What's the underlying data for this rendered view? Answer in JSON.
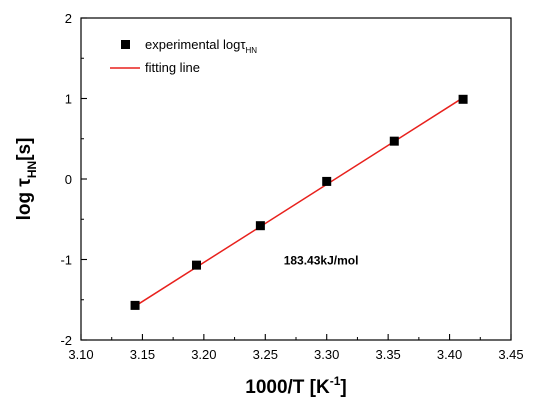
{
  "chart_data": {
    "type": "scatter",
    "xlabel": "1000/T [K",
    "xlabel_sup": "-1",
    "xlabel_end": "]",
    "ylabel": "log τ",
    "ylabel_sub": "HN",
    "ylabel_end": "[s]",
    "xlim": [
      3.1,
      3.45
    ],
    "ylim": [
      -2,
      2
    ],
    "x_ticks": [
      3.1,
      3.15,
      3.2,
      3.25,
      3.3,
      3.35,
      3.4,
      3.45
    ],
    "x_tick_labels": [
      "3.10",
      "3.15",
      "3.20",
      "3.25",
      "3.30",
      "3.35",
      "3.40",
      "3.45"
    ],
    "y_ticks": [
      -2,
      -1,
      0,
      1,
      2
    ],
    "y_tick_labels": [
      "-2",
      "-1",
      "0",
      "1",
      "2"
    ],
    "grid": false,
    "legend_position": "top-left",
    "series": [
      {
        "name": "experimental logτ",
        "name_sub": "HN",
        "marker": "square",
        "color": "#000000",
        "points": [
          {
            "x": 3.144,
            "y": -1.57
          },
          {
            "x": 3.194,
            "y": -1.07
          },
          {
            "x": 3.246,
            "y": -0.58
          },
          {
            "x": 3.3,
            "y": -0.03
          },
          {
            "x": 3.355,
            "y": 0.47
          },
          {
            "x": 3.411,
            "y": 0.99
          }
        ]
      },
      {
        "name": "fitting line",
        "type": "line",
        "color": "#e8211d",
        "points": [
          {
            "x": 3.144,
            "y": -1.58
          },
          {
            "x": 3.411,
            "y": 1.01
          }
        ]
      }
    ],
    "annotations": [
      {
        "text": "183.43kJ/mol",
        "x": 3.265,
        "y": -1.06
      }
    ]
  }
}
